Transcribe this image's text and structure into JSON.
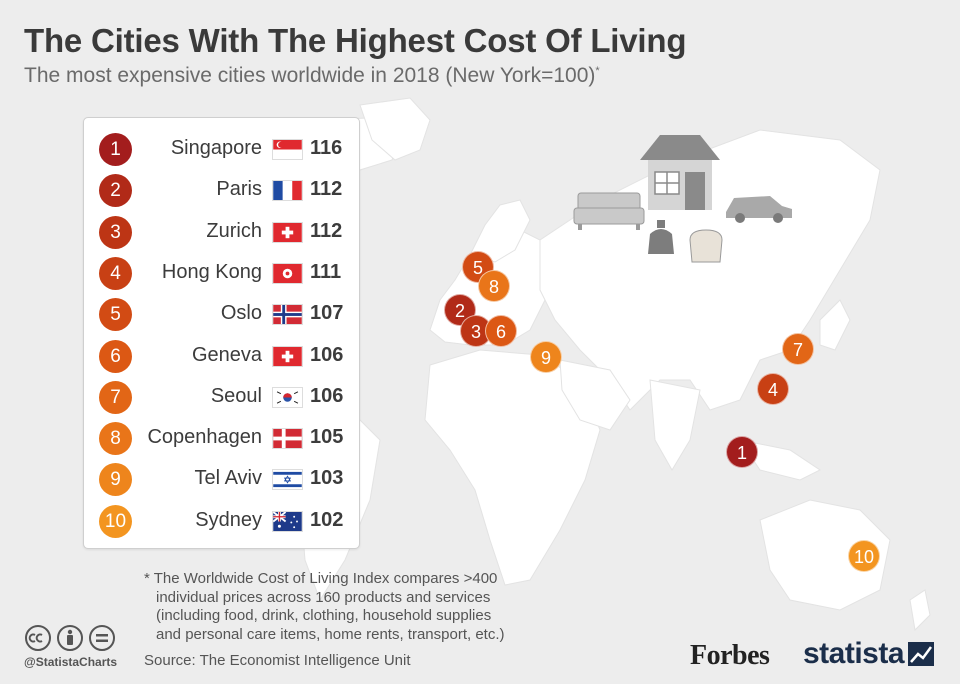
{
  "title": "The Cities With The Highest Cost Of Living",
  "subtitle": "The most expensive cities worldwide in 2018 (New York=100)",
  "subtitle_mark": "*",
  "chart_data": {
    "type": "table",
    "title": "The Cities With The Highest Cost Of Living",
    "subtitle": "The most expensive cities worldwide in 2018 (New York=100)",
    "categories": [
      "Singapore",
      "Paris",
      "Zurich",
      "Hong Kong",
      "Oslo",
      "Geneva",
      "Seoul",
      "Copenhagen",
      "Tel Aviv",
      "Sydney"
    ],
    "values": [
      116,
      112,
      112,
      111,
      107,
      106,
      106,
      105,
      103,
      102
    ],
    "ranks": [
      "1",
      "2",
      "3",
      "4",
      "5",
      "6",
      "7",
      "8",
      "9",
      "10"
    ],
    "flags": [
      "singapore-flag",
      "france-flag",
      "switzerland-flag",
      "hong-kong-flag",
      "norway-flag",
      "switzerland-flag",
      "south-korea-flag",
      "denmark-flag",
      "israel-flag",
      "australia-flag"
    ],
    "rank_colors": [
      "#a31d1d",
      "#b12a18",
      "#bd3515",
      "#c84014",
      "#d24b14",
      "#dc5814",
      "#e26616",
      "#e97519",
      "#ee851c",
      "#f39520"
    ]
  },
  "footnote": {
    "lines": [
      "* The Worldwide Cost of Living Index compares >400",
      "individual prices across 160 products and services",
      "(including food, drink, clothing, household supplies",
      "and personal care items, home rents, transport, etc.)"
    ]
  },
  "source": "Source: The Economist Intelligence Unit",
  "handle": "@StatistaCharts",
  "logos": {
    "forbes": "Forbes",
    "statista": "statista"
  },
  "icons": [
    "creative-commons-icon",
    "attribution-icon",
    "no-derivatives-icon",
    "house-icon",
    "sofa-icon",
    "car-icon",
    "soap-bottle-icon",
    "bread-icon"
  ]
}
